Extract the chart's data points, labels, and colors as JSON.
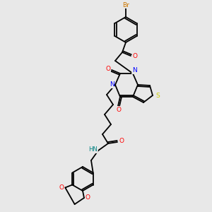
{
  "bg_color": "#e8e8e8",
  "bond_color": "#000000",
  "atom_colors": {
    "Br": "#cc7700",
    "O": "#ff0000",
    "N": "#0000ff",
    "S": "#cccc00",
    "HN": "#008080",
    "C": "#000000"
  },
  "figsize": [
    3.0,
    3.0
  ],
  "dpi": 100
}
